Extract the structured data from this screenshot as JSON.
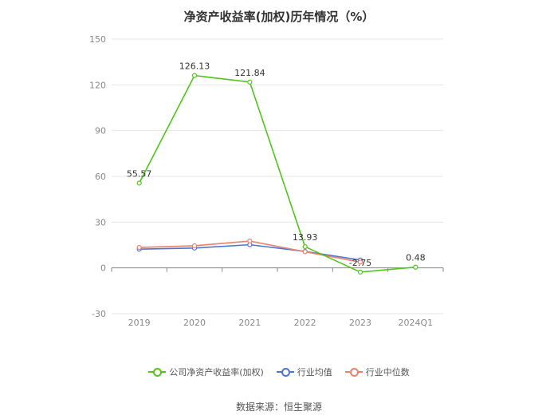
{
  "chart_data": {
    "type": "line",
    "title": "净资产收益率(加权)历年情况（%）",
    "categories": [
      "2019",
      "2020",
      "2021",
      "2022",
      "2023",
      "2024Q1"
    ],
    "ylim": [
      -30,
      150
    ],
    "yticks": [
      -30,
      0,
      30,
      60,
      90,
      120,
      150
    ],
    "grid": true,
    "legend_position": "bottom",
    "series": [
      {
        "name": "公司净资产收益率(加权)",
        "color": "#52c41a",
        "values": [
          55.57,
          126.13,
          121.84,
          13.93,
          -2.75,
          0.48
        ],
        "labels": [
          "55.57",
          "126.13",
          "121.84",
          "13.93",
          "-2.75",
          "0.48"
        ]
      },
      {
        "name": "行业均值",
        "color": "#4a74d6",
        "values": [
          12.3,
          13.0,
          15.2,
          10.8,
          5.2,
          null
        ]
      },
      {
        "name": "行业中位数",
        "color": "#e8826a",
        "values": [
          13.4,
          14.5,
          17.6,
          10.6,
          3.8,
          null
        ]
      }
    ]
  },
  "source": "数据来源：恒生聚源"
}
